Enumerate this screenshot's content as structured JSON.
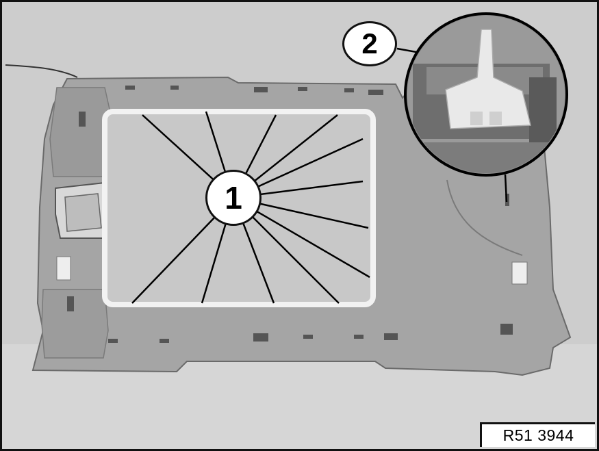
{
  "figure": {
    "callouts": {
      "part_1": "1",
      "part_2": "2"
    },
    "reference_code": "R51 3944"
  },
  "colors": {
    "background": "#cfcfcf",
    "headliner": "#a6a6a6",
    "sunroof_opening": "#c9c9c9",
    "leader_lines": "#ffffff"
  }
}
